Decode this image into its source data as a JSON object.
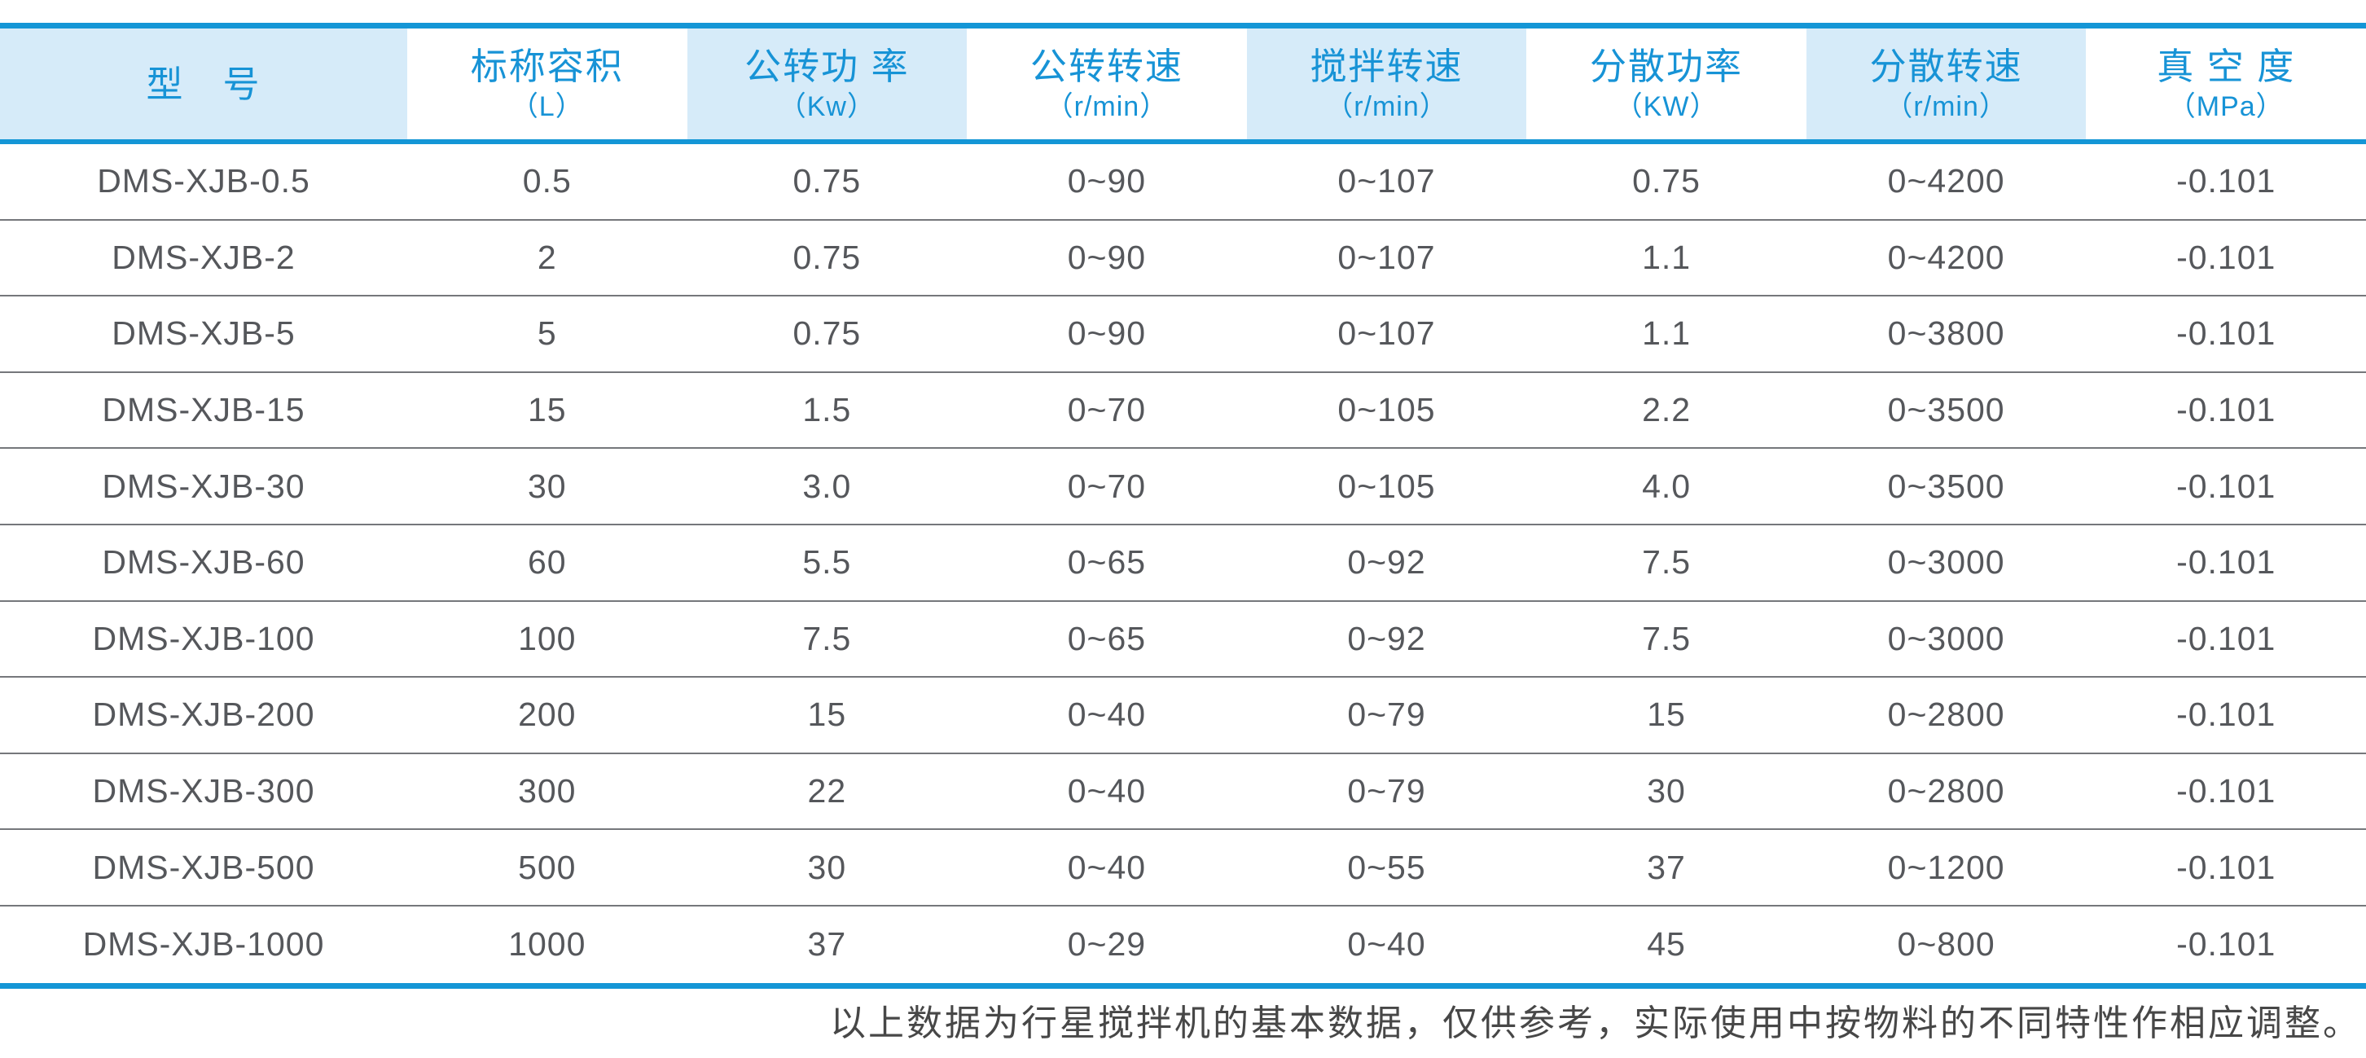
{
  "chart_data": {
    "type": "table",
    "columns": [
      {
        "title": "型　号",
        "unit": ""
      },
      {
        "title": "标称容积",
        "unit": "（L）"
      },
      {
        "title": "公转功 率",
        "unit": "（Kw）"
      },
      {
        "title": "公转转速",
        "unit": "（r/min）"
      },
      {
        "title": "搅拌转速",
        "unit": "（r/min）"
      },
      {
        "title": "分散功率",
        "unit": "（KW）"
      },
      {
        "title": "分散转速",
        "unit": "（r/min）"
      },
      {
        "title": "真 空 度",
        "unit": "（MPa）"
      }
    ],
    "rows": [
      [
        "DMS-XJB-0.5",
        "0.5",
        "0.75",
        "0~90",
        "0~107",
        "0.75",
        "0~4200",
        "-0.101"
      ],
      [
        "DMS-XJB-2",
        "2",
        "0.75",
        "0~90",
        "0~107",
        "1.1",
        "0~4200",
        "-0.101"
      ],
      [
        "DMS-XJB-5",
        "5",
        "0.75",
        "0~90",
        "0~107",
        "1.1",
        "0~3800",
        "-0.101"
      ],
      [
        "DMS-XJB-15",
        "15",
        "1.5",
        "0~70",
        "0~105",
        "2.2",
        "0~3500",
        "-0.101"
      ],
      [
        "DMS-XJB-30",
        "30",
        "3.0",
        "0~70",
        "0~105",
        "4.0",
        "0~3500",
        "-0.101"
      ],
      [
        "DMS-XJB-60",
        "60",
        "5.5",
        "0~65",
        "0~92",
        "7.5",
        "0~3000",
        "-0.101"
      ],
      [
        "DMS-XJB-100",
        "100",
        "7.5",
        "0~65",
        "0~92",
        "7.5",
        "0~3000",
        "-0.101"
      ],
      [
        "DMS-XJB-200",
        "200",
        "15",
        "0~40",
        "0~79",
        "15",
        "0~2800",
        "-0.101"
      ],
      [
        "DMS-XJB-300",
        "300",
        "22",
        "0~40",
        "0~79",
        "30",
        "0~2800",
        "-0.101"
      ],
      [
        "DMS-XJB-500",
        "500",
        "30",
        "0~40",
        "0~55",
        "37",
        "0~1200",
        "-0.101"
      ],
      [
        "DMS-XJB-1000",
        "1000",
        "37",
        "0~29",
        "0~40",
        "45",
        "0~800",
        "-0.101"
      ]
    ],
    "banded_column_indexes": [
      0,
      2,
      4,
      6
    ],
    "legend_position": "none",
    "grid": "horizontal-separators"
  },
  "footer": {
    "note": "以上数据为行星搅拌机的基本数据，仅供参考，实际使用中按物料的不同特性作相应调整。"
  },
  "colors": {
    "accent_blue": "#1496d6",
    "header_text_blue": "#1793d6",
    "band_light_blue": "#d6ebf9",
    "data_text": "#55575b",
    "row_separator": "#75777b",
    "footnote_text": "#474747"
  }
}
